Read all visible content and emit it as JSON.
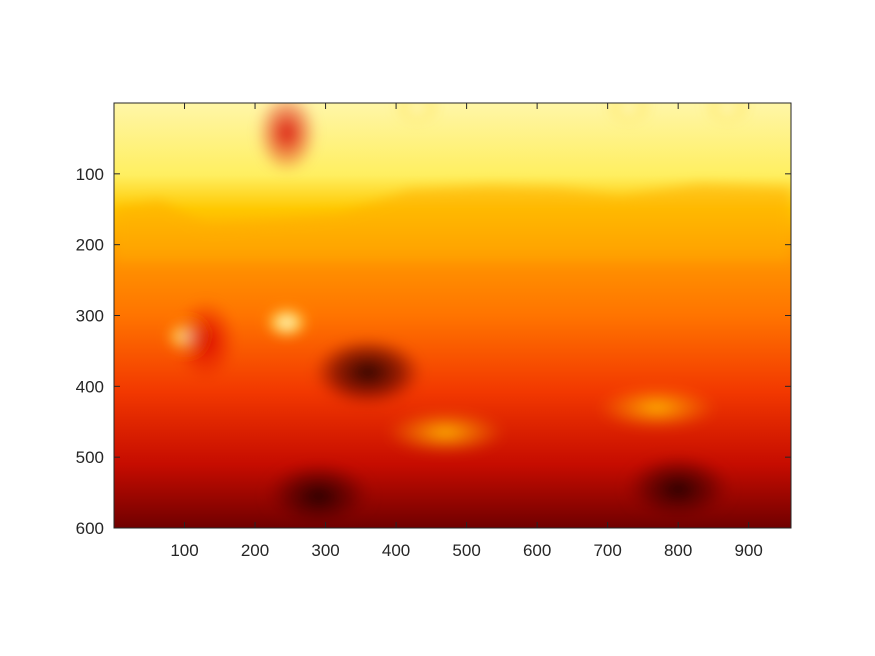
{
  "chart_data": {
    "type": "heatmap",
    "colormap": "hot",
    "title": "",
    "xlabel": "",
    "ylabel": "",
    "xlim": [
      0,
      960
    ],
    "ylim": [
      600,
      0
    ],
    "y_direction": "reversed",
    "grid": false,
    "legend": "none",
    "colorbar": false,
    "x_ticks": [
      100,
      200,
      300,
      400,
      500,
      600,
      700,
      800,
      900
    ],
    "y_ticks": [
      100,
      200,
      300,
      400,
      500,
      600
    ],
    "x_tick_labels": [
      "100",
      "200",
      "300",
      "400",
      "500",
      "600",
      "700",
      "800",
      "900"
    ],
    "y_tick_labels": [
      "100",
      "200",
      "300",
      "400",
      "500",
      "600"
    ],
    "intensity_range": [
      0,
      1
    ],
    "colors": {
      "bright_white": "#fffbe8",
      "pale_yellow": "#fff59a",
      "yellow": "#ffdf1e",
      "orange": "#ff9a00",
      "red": "#e60800",
      "dark_red": "#8a0000",
      "black": "#180000"
    },
    "bands": [
      {
        "region": "top",
        "y_range": [
          0,
          150
        ],
        "intensity": 0.9
      },
      {
        "region": "upper-middle",
        "y_range": [
          150,
          300
        ],
        "intensity": 0.55
      },
      {
        "region": "middle",
        "y_range": [
          300,
          450
        ],
        "intensity": 0.4
      },
      {
        "region": "bottom",
        "y_range": [
          450,
          600
        ],
        "intensity": 0.2
      }
    ],
    "features": [
      {
        "x": 430,
        "y": 5,
        "intensity": 1.0
      },
      {
        "x": 730,
        "y": 5,
        "intensity": 1.0
      },
      {
        "x": 870,
        "y": 5,
        "intensity": 0.98
      },
      {
        "x": 245,
        "y": 42,
        "intensity": 0.25
      },
      {
        "x": 105,
        "y": 330,
        "intensity": 1.0
      },
      {
        "x": 245,
        "y": 310,
        "intensity": 0.95
      },
      {
        "x": 470,
        "y": 465,
        "intensity": 0.75
      },
      {
        "x": 130,
        "y": 335,
        "intensity": 0.3
      },
      {
        "x": 360,
        "y": 380,
        "intensity": 0.15
      },
      {
        "x": 290,
        "y": 555,
        "intensity": 0.03
      },
      {
        "x": 800,
        "y": 545,
        "intensity": 0.05
      },
      {
        "x": 770,
        "y": 430,
        "intensity": 0.6
      }
    ]
  }
}
